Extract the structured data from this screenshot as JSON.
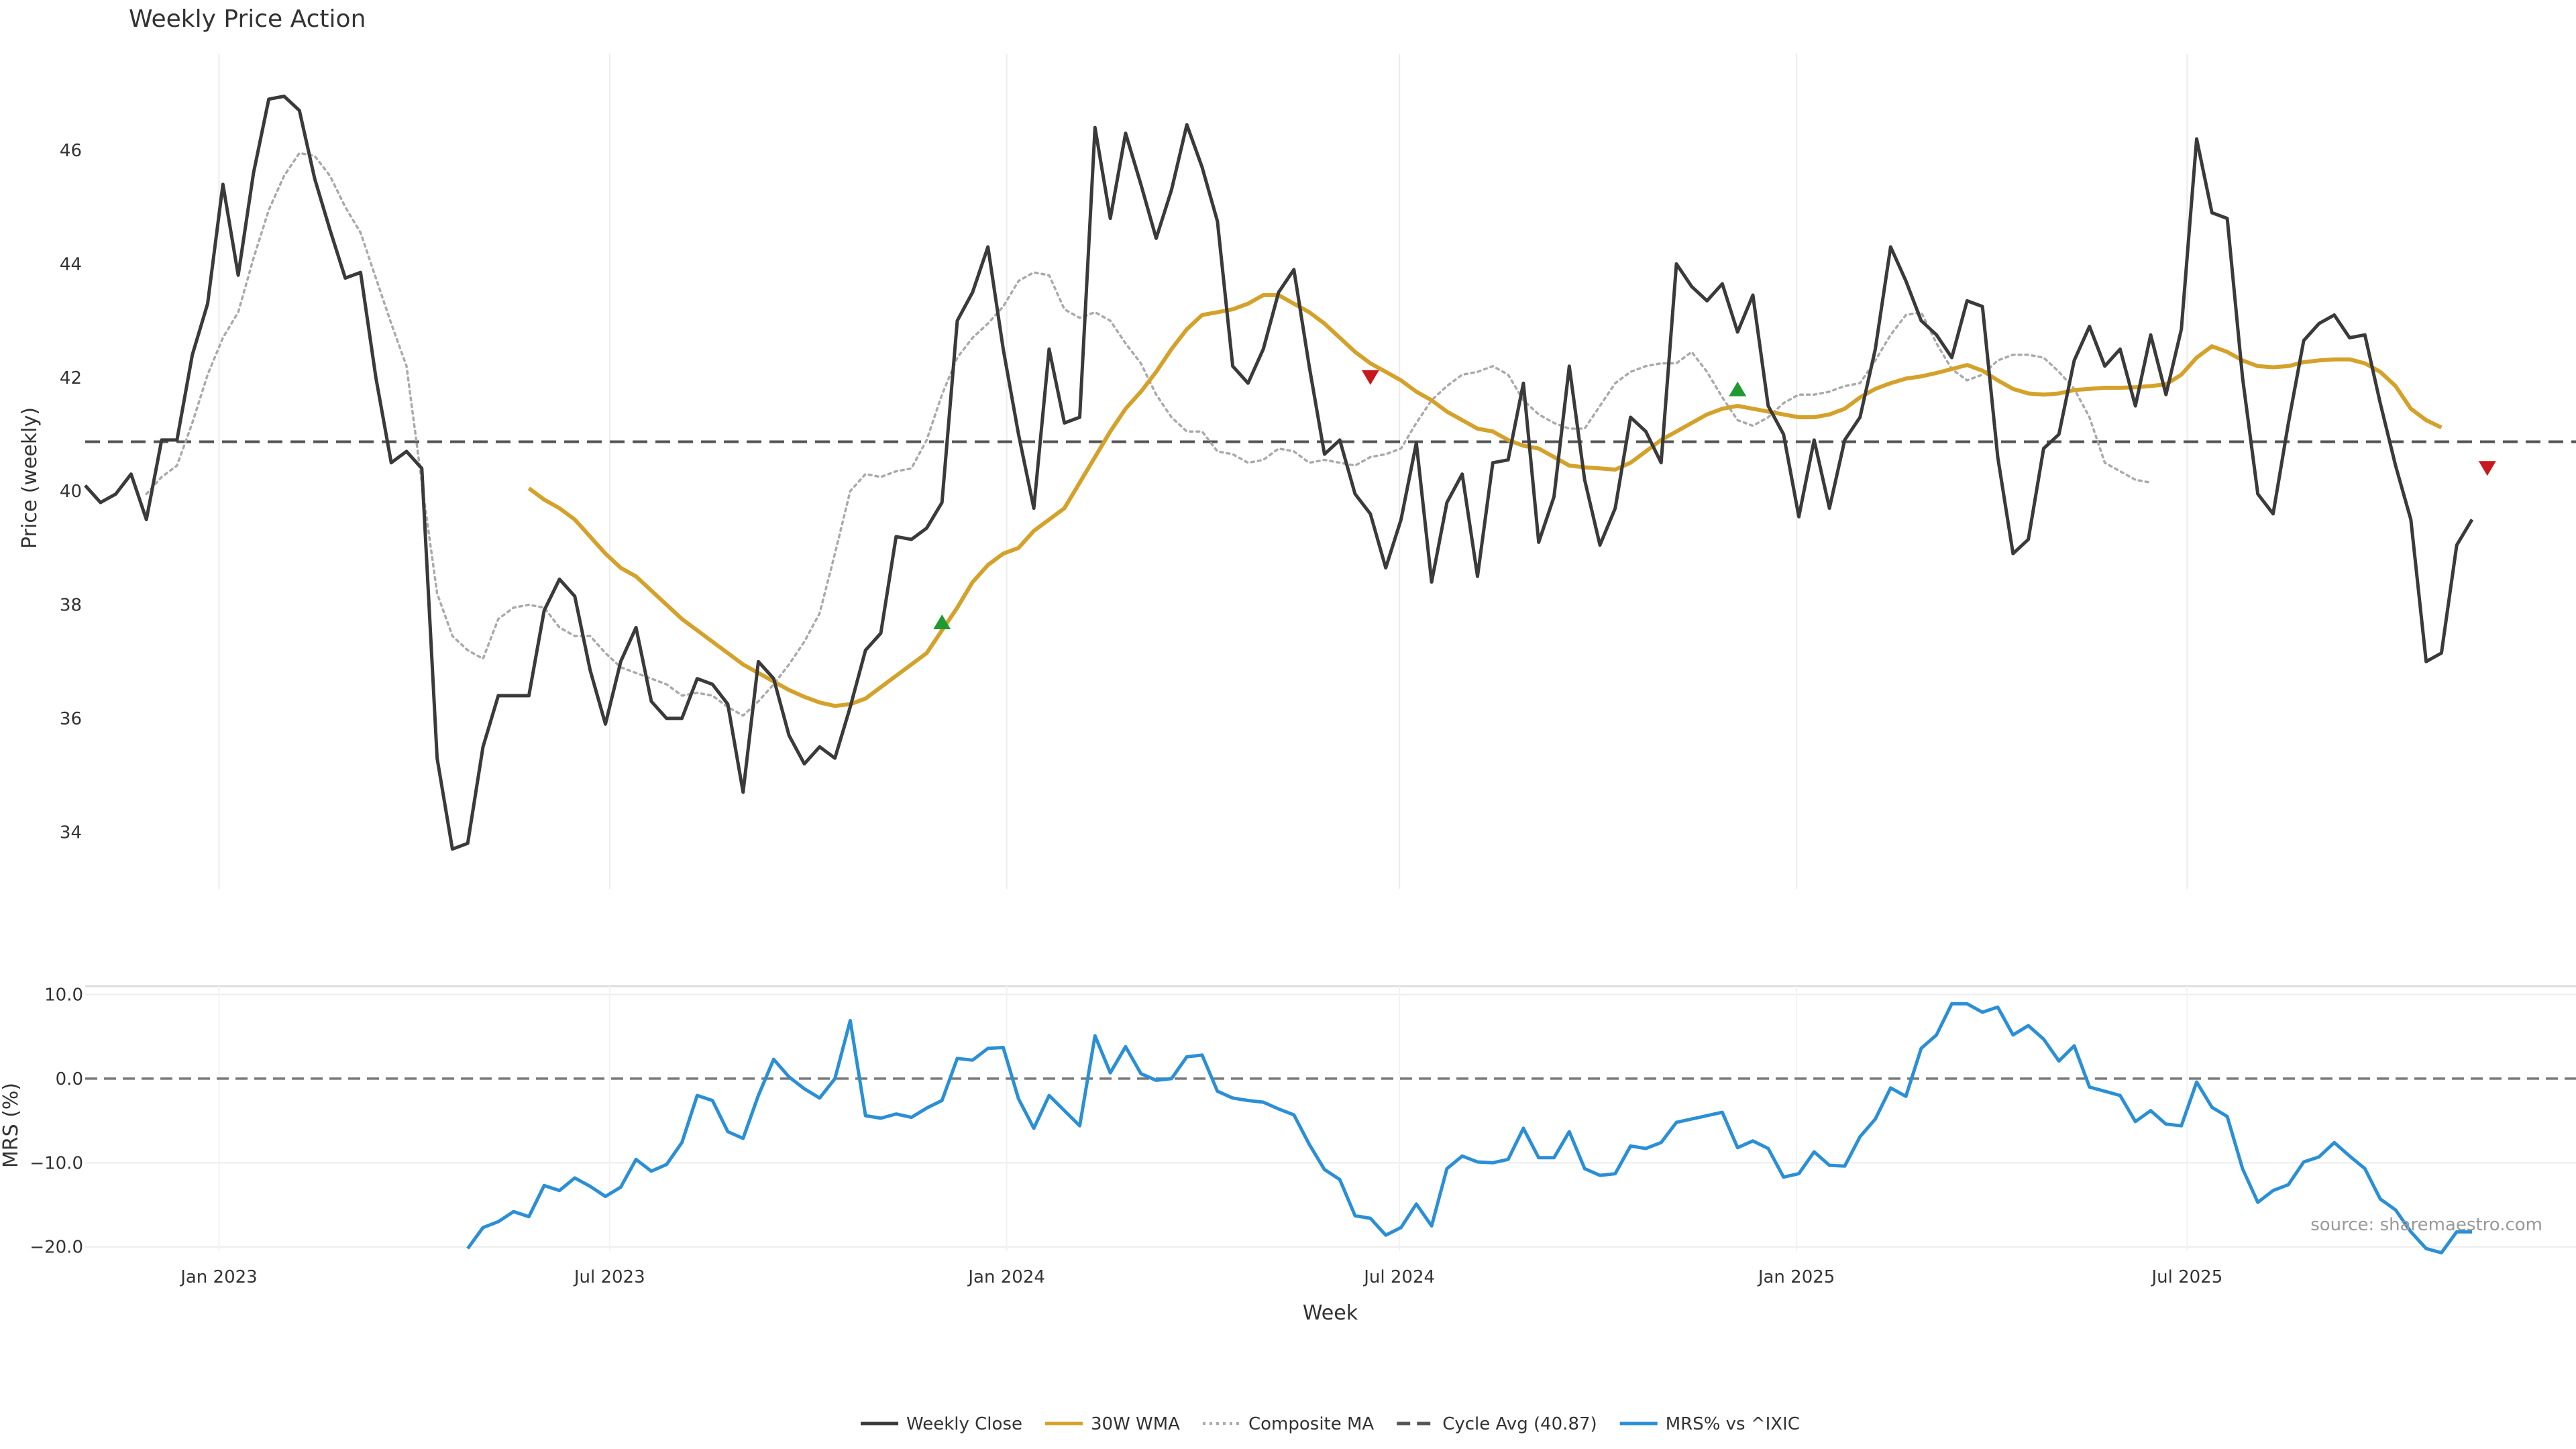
{
  "chart_data": {
    "type": "line",
    "title": "Weekly Price Action",
    "source": "source: sharemaestro.com",
    "xlabel": "Week",
    "x_ticks": [
      "Jan 2023",
      "Jul 2023",
      "Jan 2024",
      "Jul 2024",
      "Jan 2025",
      "Jul 2025"
    ],
    "x_range": [
      "2022-10-31",
      "2025-11-10"
    ],
    "legend_position": "bottom-center",
    "grid": true,
    "price_panel": {
      "ylabel": "Price (weekly)",
      "ylim": [
        33,
        47.7
      ],
      "y_ticks": [
        34,
        36,
        38,
        40,
        42,
        44,
        46
      ],
      "cycle_avg": 40.87,
      "series": [
        {
          "name": "Weekly Close",
          "color": "#3a3a3a",
          "style": "solid",
          "start": 0,
          "values": [
            40.1,
            39.8,
            39.95,
            40.3,
            39.5,
            40.9,
            40.9,
            42.4,
            43.3,
            45.4,
            43.8,
            45.6,
            46.9,
            46.95,
            46.7,
            45.5,
            44.6,
            43.75,
            43.85,
            42.0,
            40.5,
            40.7,
            40.4,
            35.3,
            33.7,
            33.8,
            35.5,
            36.4,
            36.4,
            36.4,
            37.9,
            38.45,
            38.15,
            36.85,
            35.9,
            37.0,
            37.6,
            36.3,
            36.0,
            36.0,
            36.7,
            36.6,
            36.25,
            34.7,
            37.0,
            36.7,
            35.7,
            35.2,
            35.5,
            35.3,
            36.2,
            37.2,
            37.5,
            39.2,
            39.15,
            39.35,
            39.8,
            43.0,
            43.5,
            44.3,
            42.5,
            41.0,
            39.7,
            42.5,
            41.2,
            41.3,
            46.4,
            44.8,
            46.3,
            45.4,
            44.45,
            45.3,
            46.45,
            45.7,
            44.75,
            42.2,
            41.9,
            42.5,
            43.5,
            43.9,
            42.2,
            40.65,
            40.9,
            39.95,
            39.6,
            38.65,
            39.5,
            40.85,
            38.4,
            39.8,
            40.3,
            38.5,
            40.5,
            40.55,
            41.9,
            39.1,
            39.9,
            42.2,
            40.2,
            39.05,
            39.7,
            41.3,
            41.05,
            40.5,
            44.0,
            43.6,
            43.35,
            43.65,
            42.8,
            43.45,
            41.5,
            41.0,
            39.55,
            40.9,
            39.7,
            40.9,
            41.3,
            42.5,
            44.3,
            43.7,
            43.0,
            42.75,
            42.35,
            43.35,
            43.25,
            40.6,
            38.9,
            39.15,
            40.75,
            41.0,
            42.3,
            42.9,
            42.2,
            42.5,
            41.5,
            42.75,
            41.7,
            42.85,
            46.2,
            44.9,
            44.8,
            42.0,
            39.95,
            39.6,
            41.2,
            42.65,
            42.95,
            43.1,
            42.7,
            42.75,
            41.55,
            40.45,
            39.5,
            37.0,
            37.15,
            39.05,
            39.5
          ]
        },
        {
          "name": "30W WMA",
          "color": "#d4a22a",
          "style": "solid",
          "start": 29,
          "values": [
            40.05,
            39.85,
            39.7,
            39.5,
            39.2,
            38.9,
            38.65,
            38.5,
            38.25,
            38.0,
            37.75,
            37.55,
            37.35,
            37.15,
            36.95,
            36.8,
            36.65,
            36.5,
            36.38,
            36.28,
            36.22,
            36.25,
            36.35,
            36.55,
            36.75,
            36.95,
            37.15,
            37.55,
            37.95,
            38.4,
            38.7,
            38.9,
            39.0,
            39.3,
            39.5,
            39.7,
            40.15,
            40.6,
            41.05,
            41.45,
            41.75,
            42.1,
            42.5,
            42.85,
            43.1,
            43.15,
            43.2,
            43.3,
            43.45,
            43.45,
            43.3,
            43.15,
            42.95,
            42.7,
            42.45,
            42.25,
            42.1,
            41.95,
            41.75,
            41.6,
            41.4,
            41.25,
            41.1,
            41.05,
            40.9,
            40.8,
            40.75,
            40.6,
            40.45,
            40.42,
            40.4,
            40.38,
            40.5,
            40.7,
            40.9,
            41.05,
            41.2,
            41.35,
            41.45,
            41.5,
            41.45,
            41.4,
            41.35,
            41.3,
            41.3,
            41.35,
            41.45,
            41.65,
            41.8,
            41.9,
            41.98,
            42.02,
            42.08,
            42.15,
            42.22,
            42.12,
            41.95,
            41.8,
            41.72,
            41.7,
            41.72,
            41.78,
            41.8,
            41.82,
            41.82,
            41.83,
            41.85,
            41.88,
            42.05,
            42.35,
            42.55,
            42.45,
            42.3,
            42.2,
            42.18,
            42.2,
            42.27,
            42.3,
            42.32,
            42.32,
            42.25,
            42.1,
            41.85,
            41.45,
            41.25,
            41.12
          ]
        },
        {
          "name": "Composite MA",
          "color": "#aaaaaa",
          "style": "dotted",
          "start": 4,
          "values": [
            39.95,
            40.25,
            40.45,
            41.2,
            42.05,
            42.7,
            43.15,
            44.1,
            44.95,
            45.55,
            45.95,
            45.9,
            45.55,
            45.0,
            44.55,
            43.75,
            42.95,
            42.2,
            40.15,
            38.2,
            37.45,
            37.2,
            37.05,
            37.75,
            37.95,
            38.0,
            37.95,
            37.6,
            37.45,
            37.45,
            37.15,
            36.9,
            36.8,
            36.7,
            36.6,
            36.4,
            36.45,
            36.4,
            36.2,
            36.05,
            36.3,
            36.6,
            36.95,
            37.35,
            37.85,
            38.9,
            40.0,
            40.3,
            40.25,
            40.35,
            40.4,
            40.9,
            41.7,
            42.35,
            42.7,
            42.95,
            43.25,
            43.7,
            43.85,
            43.8,
            43.2,
            43.05,
            43.15,
            43.0,
            42.6,
            42.25,
            41.7,
            41.3,
            41.05,
            41.05,
            40.7,
            40.65,
            40.5,
            40.55,
            40.75,
            40.7,
            40.5,
            40.55,
            40.5,
            40.45,
            40.6,
            40.65,
            40.75,
            41.2,
            41.6,
            41.85,
            42.05,
            42.1,
            42.2,
            42.05,
            41.6,
            41.35,
            41.2,
            41.1,
            41.1,
            41.5,
            41.9,
            42.1,
            42.2,
            42.25,
            42.25,
            42.45,
            42.1,
            41.65,
            41.25,
            41.15,
            41.3,
            41.55,
            41.7,
            41.7,
            41.75,
            41.85,
            41.9,
            42.3,
            42.75,
            43.1,
            43.15,
            42.6,
            42.15,
            41.95,
            42.05,
            42.3,
            42.4,
            42.4,
            42.35,
            42.1,
            41.8,
            41.3,
            40.5,
            40.35,
            40.2,
            40.15
          ]
        },
        {
          "name": "Cycle Avg (40.87)",
          "color": "#555555",
          "style": "dashed"
        }
      ],
      "signals": [
        {
          "type": "buy",
          "index": 56,
          "value": 37.7
        },
        {
          "type": "sell",
          "index": 84,
          "value": 42.0
        },
        {
          "type": "buy",
          "index": 108,
          "value": 41.8
        },
        {
          "type": "sell",
          "index": 157,
          "value": 40.4
        }
      ]
    },
    "mrs_panel": {
      "ylabel": "MRS (%)",
      "ylim": [
        -20.5,
        11
      ],
      "y_ticks": [
        10.0,
        0.0,
        -10.0,
        -20.0
      ],
      "y_tick_labels": [
        "10.0",
        "0.0",
        "−10.0",
        "−20.0"
      ],
      "series": [
        {
          "name": "MRS% vs ^IXIC",
          "color": "#2a8fd6",
          "style": "solid",
          "start": 25,
          "values": [
            -20.2,
            -17.7,
            -17.0,
            -15.8,
            -16.4,
            -12.7,
            -13.3,
            -11.8,
            -12.8,
            -14.0,
            -12.9,
            -9.6,
            -11.0,
            -10.2,
            -7.6,
            -2.0,
            -2.6,
            -6.3,
            -7.1,
            -2.0,
            2.3,
            0.2,
            -1.2,
            -2.3,
            0.0,
            6.9,
            -4.4,
            -4.7,
            -4.2,
            -4.6,
            -3.5,
            -2.6,
            2.4,
            2.2,
            3.6,
            3.7,
            -2.4,
            -5.9,
            -2.0,
            -3.8,
            -5.6,
            5.1,
            0.7,
            3.8,
            0.6,
            -0.2,
            0.0,
            2.6,
            2.8,
            -1.5,
            -2.3,
            -2.6,
            -2.8,
            -3.6,
            -4.3,
            -7.8,
            -10.8,
            -12.0,
            -16.3,
            -16.6,
            -18.6,
            -17.7,
            -14.9,
            -17.5,
            -10.7,
            -9.2,
            -9.9,
            -10.0,
            -9.6,
            -5.9,
            -9.4,
            -9.4,
            -6.3,
            -10.7,
            -11.5,
            -11.3,
            -8.0,
            -8.3,
            -7.6,
            -5.2,
            -4.8,
            -4.4,
            -4.0,
            -8.2,
            -7.4,
            -8.3,
            -11.7,
            -11.3,
            -8.7,
            -10.3,
            -10.4,
            -6.9,
            -4.8,
            -1.1,
            -2.1,
            3.6,
            5.2,
            8.9,
            8.9,
            7.9,
            8.5,
            5.2,
            6.3,
            4.7,
            2.1,
            3.9,
            -1.0,
            -1.5,
            -2.0,
            -5.1,
            -3.8,
            -5.4,
            -5.6,
            -0.4,
            -3.4,
            -4.5,
            -10.7,
            -14.7,
            -13.3,
            -12.6,
            -9.9,
            -9.3,
            -7.6,
            -9.2,
            -10.7,
            -14.3,
            -15.6,
            -18.2,
            -20.2,
            -20.7,
            -18.2,
            -18.2
          ]
        }
      ]
    }
  }
}
